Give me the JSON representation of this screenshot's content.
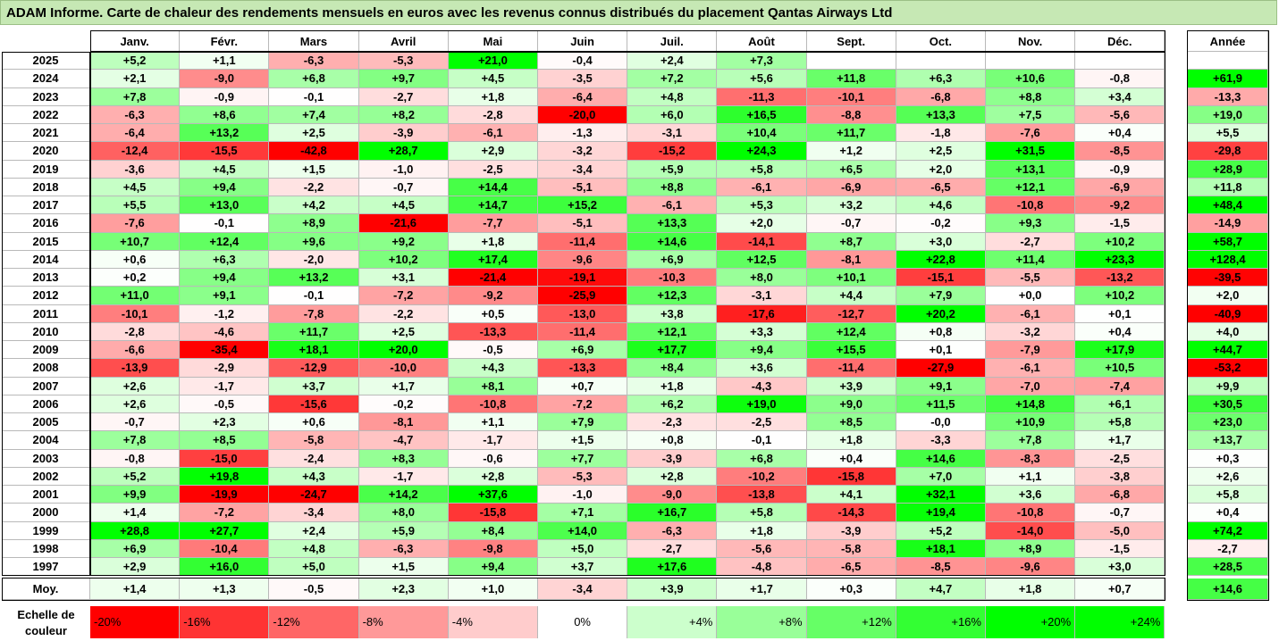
{
  "title": "ADAM Informe. Carte de chaleur des rendements mensuels en euros avec les revenus connus distribués du placement Qantas Airways Ltd",
  "chart_data": {
    "type": "heatmap",
    "months": [
      "Janv.",
      "Févr.",
      "Mars",
      "Avril",
      "Mai",
      "Juin",
      "Juil.",
      "Août",
      "Sept.",
      "Oct.",
      "Nov.",
      "Déc."
    ],
    "annual_header": "Année",
    "avg_label": "Moy.",
    "rows": [
      {
        "year": "2025",
        "values": [
          "+5,2",
          "+1,1",
          "-6,3",
          "-5,3",
          "+21,0",
          "-0,4",
          "+2,4",
          "+7,3",
          "",
          "",
          "",
          ""
        ],
        "annual": ""
      },
      {
        "year": "2024",
        "values": [
          "+2,1",
          "-9,0",
          "+6,8",
          "+9,7",
          "+4,5",
          "-3,5",
          "+7,2",
          "+5,6",
          "+11,8",
          "+6,3",
          "+10,6",
          "-0,8"
        ],
        "annual": "+61,9"
      },
      {
        "year": "2023",
        "values": [
          "+7,8",
          "-0,9",
          "-0,1",
          "-2,7",
          "+1,8",
          "-6,4",
          "+4,8",
          "-11,3",
          "-10,1",
          "-6,8",
          "+8,8",
          "+3,4"
        ],
        "annual": "-13,3"
      },
      {
        "year": "2022",
        "values": [
          "-6,3",
          "+8,6",
          "+7,4",
          "+8,2",
          "-2,8",
          "-20,0",
          "+6,0",
          "+16,5",
          "-8,8",
          "+13,3",
          "+7,5",
          "-5,6"
        ],
        "annual": "+19,0"
      },
      {
        "year": "2021",
        "values": [
          "-6,4",
          "+13,2",
          "+2,5",
          "-3,9",
          "-6,1",
          "-1,3",
          "-3,1",
          "+10,4",
          "+11,7",
          "-1,8",
          "-7,6",
          "+0,4"
        ],
        "annual": "+5,5"
      },
      {
        "year": "2020",
        "values": [
          "-12,4",
          "-15,5",
          "-42,8",
          "+28,7",
          "+2,9",
          "-3,2",
          "-15,2",
          "+24,3",
          "+1,2",
          "+2,5",
          "+31,5",
          "-8,5"
        ],
        "annual": "-29,8"
      },
      {
        "year": "2019",
        "values": [
          "-3,6",
          "+4,5",
          "+1,5",
          "-1,0",
          "-2,5",
          "-3,4",
          "+5,9",
          "+5,8",
          "+6,5",
          "+2,0",
          "+13,1",
          "-0,9"
        ],
        "annual": "+28,9"
      },
      {
        "year": "2018",
        "values": [
          "+4,5",
          "+9,4",
          "-2,2",
          "-0,7",
          "+14,4",
          "-5,1",
          "+8,8",
          "-6,1",
          "-6,9",
          "-6,5",
          "+12,1",
          "-6,9"
        ],
        "annual": "+11,8"
      },
      {
        "year": "2017",
        "values": [
          "+5,5",
          "+13,0",
          "+4,2",
          "+4,5",
          "+14,7",
          "+15,2",
          "-6,1",
          "+5,3",
          "+3,2",
          "+4,6",
          "-10,8",
          "-9,2"
        ],
        "annual": "+48,4"
      },
      {
        "year": "2016",
        "values": [
          "-7,6",
          "-0,1",
          "+8,9",
          "-21,6",
          "-7,7",
          "-5,1",
          "+13,3",
          "+2,0",
          "-0,7",
          "-0,2",
          "+9,3",
          "-1,5"
        ],
        "annual": "-14,9"
      },
      {
        "year": "2015",
        "values": [
          "+10,7",
          "+12,4",
          "+9,6",
          "+9,2",
          "+1,8",
          "-11,4",
          "+14,6",
          "-14,1",
          "+8,7",
          "+3,0",
          "-2,7",
          "+10,2"
        ],
        "annual": "+58,7"
      },
      {
        "year": "2014",
        "values": [
          "+0,6",
          "+6,3",
          "-2,0",
          "+10,2",
          "+17,4",
          "-9,6",
          "+6,9",
          "+12,5",
          "-8,1",
          "+22,8",
          "+11,4",
          "+23,3"
        ],
        "annual": "+128,4"
      },
      {
        "year": "2013",
        "values": [
          "+0,2",
          "+9,4",
          "+13,2",
          "+3,1",
          "-21,4",
          "-19,1",
          "-10,3",
          "+8,0",
          "+10,1",
          "-15,1",
          "-5,5",
          "-13,2"
        ],
        "annual": "-39,5"
      },
      {
        "year": "2012",
        "values": [
          "+11,0",
          "+9,1",
          "-0,1",
          "-7,2",
          "-9,2",
          "-25,9",
          "+12,3",
          "-3,1",
          "+4,4",
          "+7,9",
          "+0,0",
          "+10,2"
        ],
        "annual": "+2,0"
      },
      {
        "year": "2011",
        "values": [
          "-10,1",
          "-1,2",
          "-7,8",
          "-2,2",
          "+0,5",
          "-13,0",
          "+3,8",
          "-17,6",
          "-12,7",
          "+20,2",
          "-6,1",
          "+0,1"
        ],
        "annual": "-40,9"
      },
      {
        "year": "2010",
        "values": [
          "-2,8",
          "-4,6",
          "+11,7",
          "+2,5",
          "-13,3",
          "-11,4",
          "+12,1",
          "+3,3",
          "+12,4",
          "+0,8",
          "-3,2",
          "+0,4"
        ],
        "annual": "+4,0"
      },
      {
        "year": "2009",
        "values": [
          "-6,6",
          "-35,4",
          "+18,1",
          "+20,0",
          "-0,5",
          "+6,9",
          "+17,7",
          "+9,4",
          "+15,5",
          "+0,1",
          "-7,9",
          "+17,9"
        ],
        "annual": "+44,7"
      },
      {
        "year": "2008",
        "values": [
          "-13,9",
          "-2,9",
          "-12,9",
          "-10,0",
          "+4,3",
          "-13,3",
          "+8,4",
          "+3,6",
          "-11,4",
          "-27,9",
          "-6,1",
          "+10,5"
        ],
        "annual": "-53,2"
      },
      {
        "year": "2007",
        "values": [
          "+2,6",
          "-1,7",
          "+3,7",
          "+1,7",
          "+8,1",
          "+0,7",
          "+1,8",
          "-4,3",
          "+3,9",
          "+9,1",
          "-7,0",
          "-7,4"
        ],
        "annual": "+9,9"
      },
      {
        "year": "2006",
        "values": [
          "+2,6",
          "-0,5",
          "-15,6",
          "-0,2",
          "-10,8",
          "-7,2",
          "+6,2",
          "+19,0",
          "+9,0",
          "+11,5",
          "+14,8",
          "+6,1"
        ],
        "annual": "+30,5"
      },
      {
        "year": "2005",
        "values": [
          "-0,7",
          "+2,3",
          "+0,6",
          "-8,1",
          "+1,1",
          "+7,9",
          "-2,3",
          "-2,5",
          "+8,5",
          "-0,0",
          "+10,9",
          "+5,8"
        ],
        "annual": "+23,0"
      },
      {
        "year": "2004",
        "values": [
          "+7,8",
          "+8,5",
          "-5,8",
          "-4,7",
          "-1,7",
          "+1,5",
          "+0,8",
          "-0,1",
          "+1,8",
          "-3,3",
          "+7,8",
          "+1,7"
        ],
        "annual": "+13,7"
      },
      {
        "year": "2003",
        "values": [
          "-0,8",
          "-15,0",
          "-2,4",
          "+8,3",
          "-0,6",
          "+7,7",
          "-3,9",
          "+6,8",
          "+0,4",
          "+14,6",
          "-8,3",
          "-2,5"
        ],
        "annual": "+0,3"
      },
      {
        "year": "2002",
        "values": [
          "+5,2",
          "+19,8",
          "+4,3",
          "-1,7",
          "+2,8",
          "-5,3",
          "+2,8",
          "-10,2",
          "-15,8",
          "+7,0",
          "+1,1",
          "-3,8"
        ],
        "annual": "+2,6"
      },
      {
        "year": "2001",
        "values": [
          "+9,9",
          "-19,9",
          "-24,7",
          "+14,2",
          "+37,6",
          "-1,0",
          "-9,0",
          "-13,8",
          "+4,1",
          "+32,1",
          "+3,6",
          "-6,8"
        ],
        "annual": "+5,8"
      },
      {
        "year": "2000",
        "values": [
          "+1,4",
          "-7,2",
          "-3,4",
          "+8,0",
          "-15,8",
          "+7,1",
          "+16,7",
          "+5,8",
          "-14,3",
          "+19,4",
          "-10,8",
          "-0,7"
        ],
        "annual": "+0,4"
      },
      {
        "year": "1999",
        "values": [
          "+28,8",
          "+27,7",
          "+2,4",
          "+5,9",
          "+8,4",
          "+14,0",
          "-6,3",
          "+1,8",
          "-3,9",
          "+5,2",
          "-14,0",
          "-5,0"
        ],
        "annual": "+74,2"
      },
      {
        "year": "1998",
        "values": [
          "+6,9",
          "-10,4",
          "+4,8",
          "-6,3",
          "-9,8",
          "+5,0",
          "-2,7",
          "-5,6",
          "-5,8",
          "+18,1",
          "+8,9",
          "-1,5"
        ],
        "annual": "-2,7"
      },
      {
        "year": "1997",
        "values": [
          "+2,9",
          "+16,0",
          "+5,0",
          "+1,5",
          "+9,4",
          "+3,7",
          "+17,6",
          "-4,8",
          "-6,5",
          "-8,5",
          "-9,6",
          "+3,0"
        ],
        "annual": "+28,5"
      }
    ],
    "averages": [
      "+1,4",
      "+1,3",
      "-0,5",
      "+2,3",
      "+1,0",
      "-3,4",
      "+3,9",
      "+1,7",
      "+0,3",
      "+4,7",
      "+1,8",
      "+0,7"
    ],
    "avg_annual": "+14,6",
    "scale_label": "Echelle de couleur",
    "scale": [
      "-20%",
      "-16%",
      "-12%",
      "-8%",
      "-4%",
      "0%",
      "+4%",
      "+8%",
      "+12%",
      "+16%",
      "+20%",
      "+24%"
    ],
    "colors": {
      "negative_max": "#ff0000",
      "neutral": "#ffffff",
      "positive_max": "#00ff00",
      "title_bg": "#c6e8b4"
    }
  }
}
